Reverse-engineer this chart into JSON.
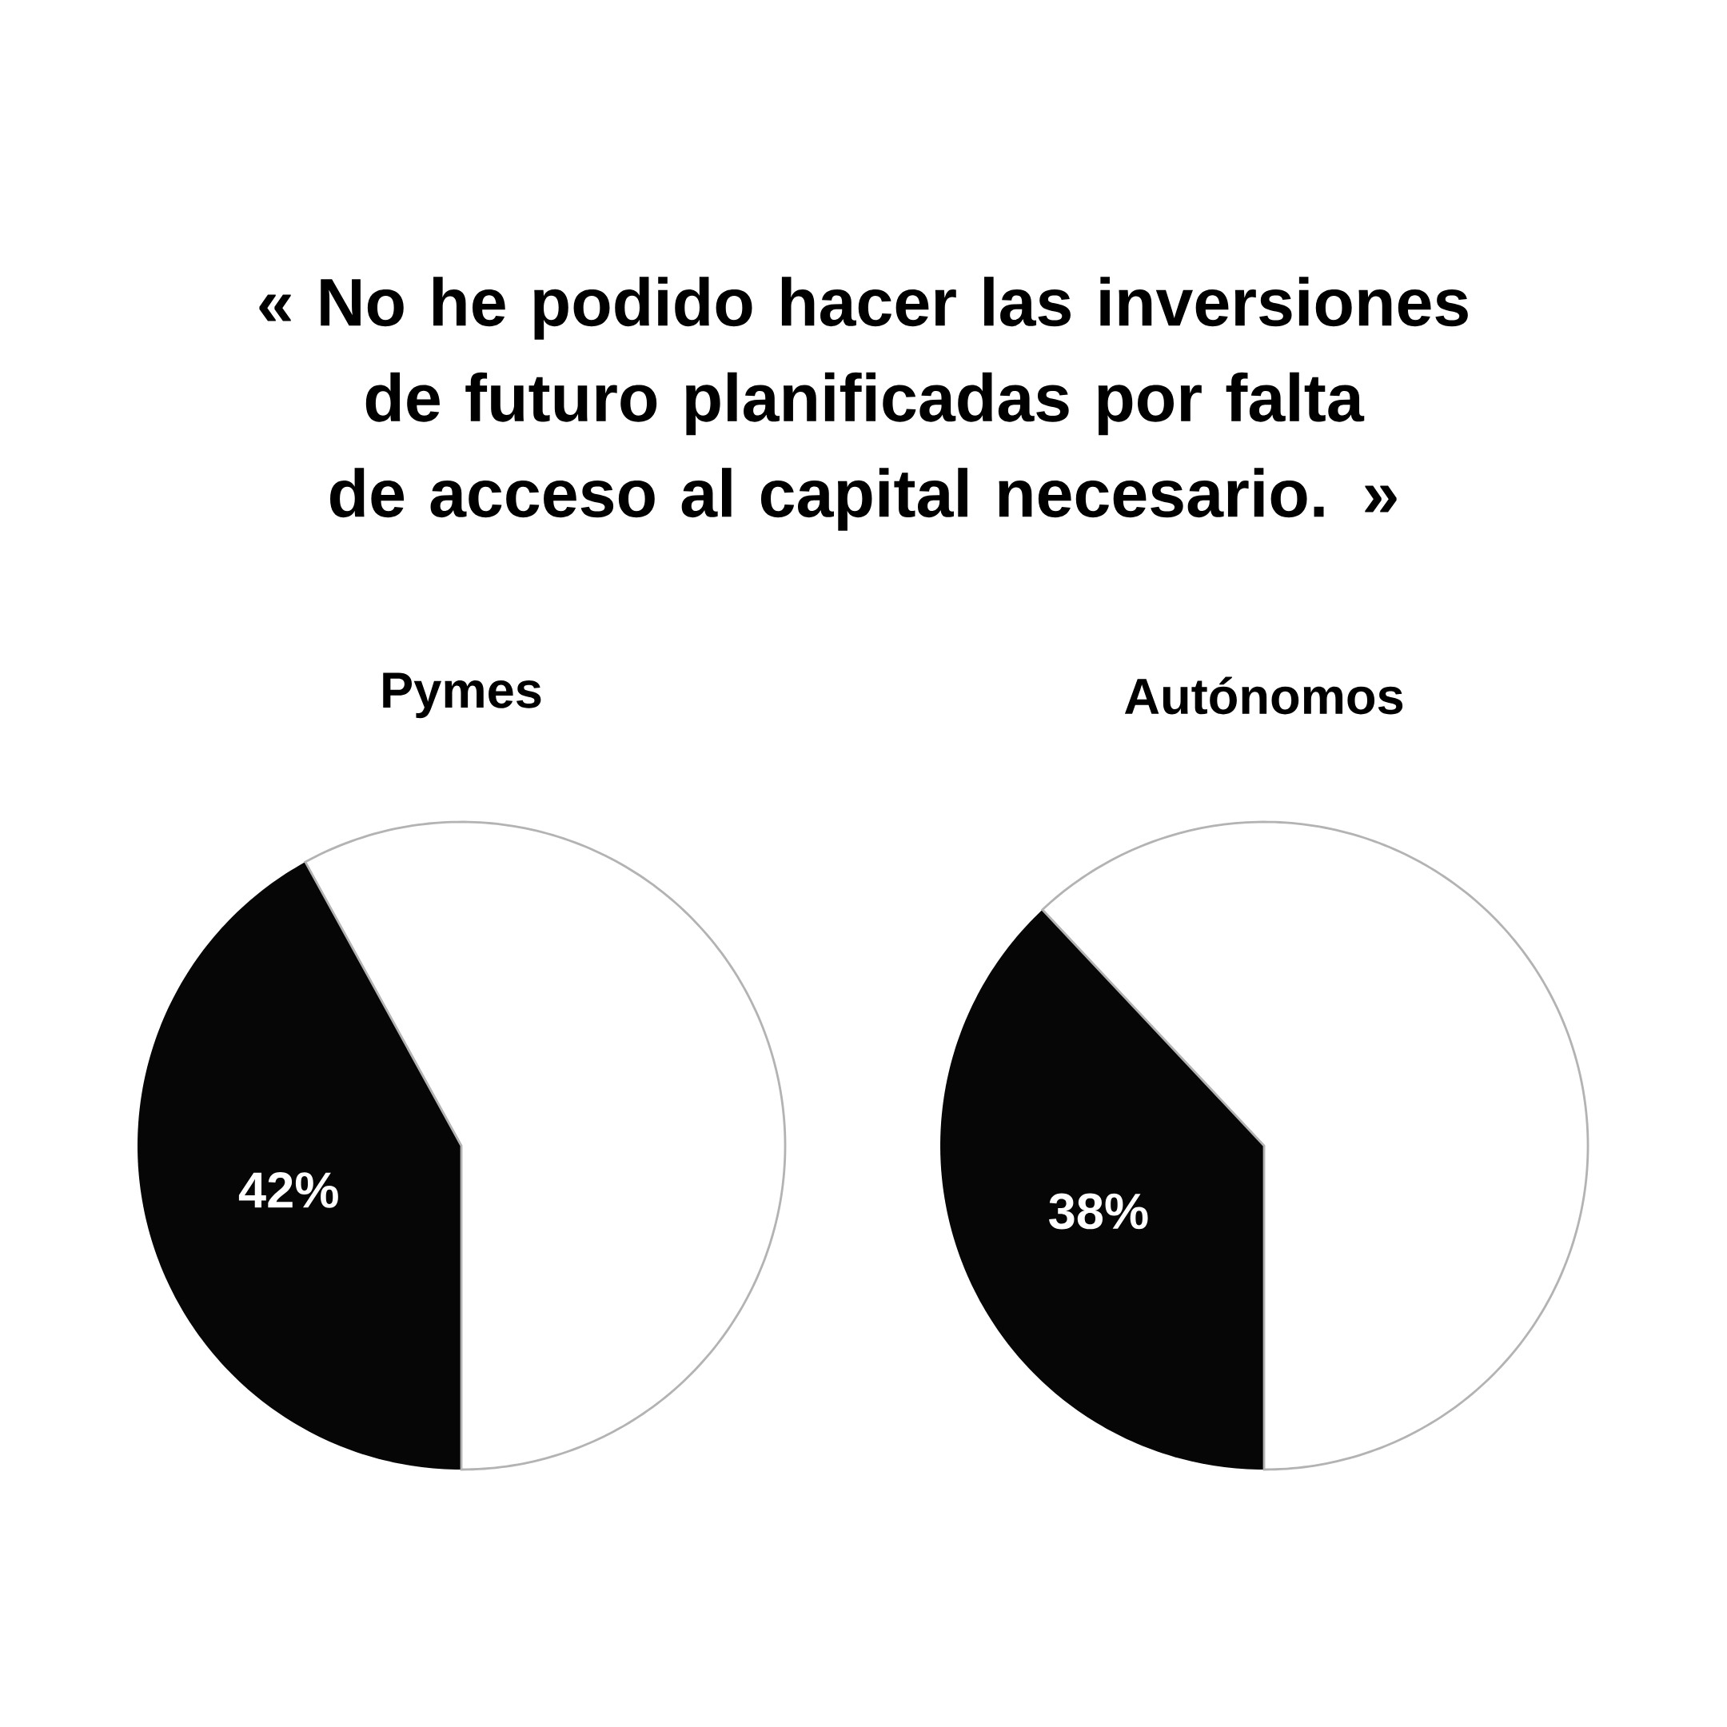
{
  "chart_data": [
    {
      "type": "other",
      "title": "« No he podido hacer las inversiones de futuro planificadas por falta de acceso al capital necesario. »"
    },
    {
      "type": "pie",
      "title": "Pymes",
      "categories": [
        null,
        null
      ],
      "values": [
        42,
        58
      ],
      "colors": [
        "#060606",
        "#ffffff"
      ],
      "value_labels": [
        "42%",
        null
      ]
    },
    {
      "type": "pie",
      "title": "Autónomos",
      "categories": [
        null,
        null
      ],
      "values": [
        38,
        62
      ],
      "colors": [
        "#060606",
        "#ffffff"
      ],
      "value_labels": [
        "38%",
        null
      ]
    }
  ]
}
